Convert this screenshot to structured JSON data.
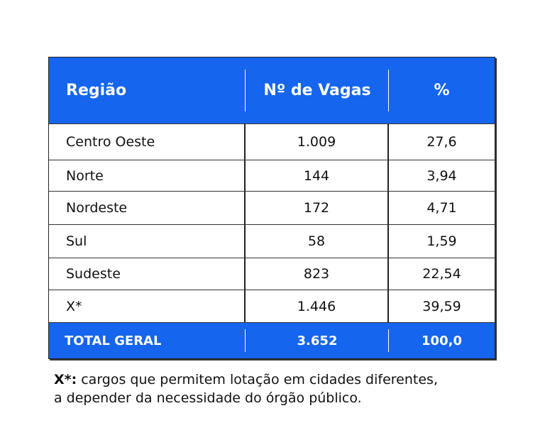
{
  "table": {
    "header": [
      "Região",
      "Nº de Vagas",
      "%"
    ],
    "rows": [
      [
        "Centro Oeste",
        "1.009",
        "27,6"
      ],
      [
        "Norte",
        "144",
        "3,94"
      ],
      [
        "Nordeste",
        "172",
        "4,71"
      ],
      [
        "Sul",
        "58",
        "1,59"
      ],
      [
        "Sudeste",
        "823",
        "22,54"
      ],
      [
        "X*",
        "1.446",
        "39,59"
      ]
    ],
    "total": [
      "TOTAL GERAL",
      "3.652",
      "100,0"
    ]
  },
  "note": {
    "label": "X*:",
    "lines": [
      "cargos que permitem lotação em cidades diferentes,",
      "a depender da necessidade do órgão público."
    ]
  }
}
